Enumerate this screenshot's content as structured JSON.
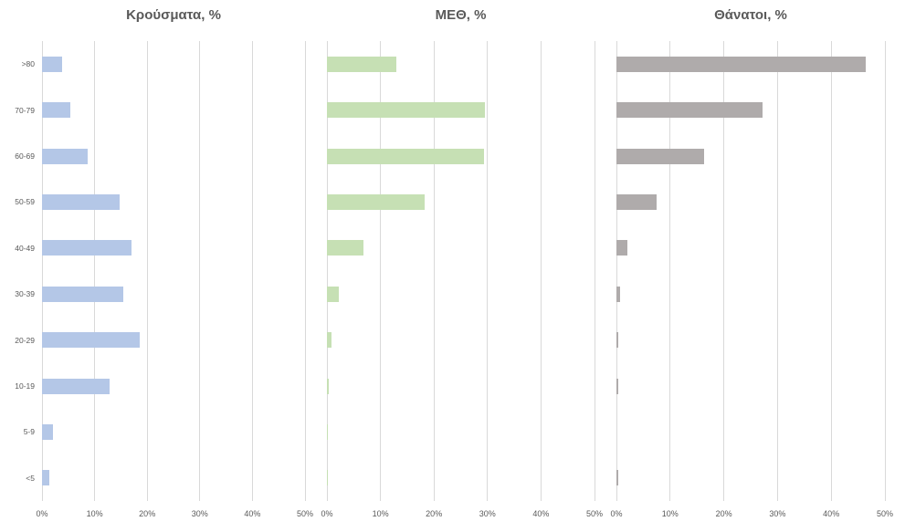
{
  "chart_data": {
    "type": "bar",
    "orientation": "horizontal",
    "title": "",
    "categories": [
      ">80",
      "70-79",
      "60-69",
      "50-59",
      "40-49",
      "30-39",
      "20-29",
      "10-19",
      "5-9",
      "<5"
    ],
    "x_axis": {
      "min": 0,
      "max": 50,
      "tick_step": 10,
      "tick_labels": [
        "0%",
        "10%",
        "20%",
        "30%",
        "40%",
        "50%"
      ],
      "grid": true
    },
    "legend": "none",
    "layout": {
      "background_color": "#ffffff",
      "gridline_color": "#d9d9d9",
      "text_color": "#595959"
    },
    "charts": [
      {
        "title": "Κρούσματα, %",
        "color": "#B4C7E7",
        "values": [
          3.8,
          5.3,
          8.7,
          14.7,
          17.1,
          15.4,
          18.5,
          12.9,
          2.0,
          1.4
        ]
      },
      {
        "title": "ΜΕΘ, %",
        "color": "#C6E0B4",
        "values": [
          13.0,
          29.5,
          29.4,
          18.2,
          6.9,
          2.3,
          0.8,
          0.4,
          0.1,
          0.1
        ]
      },
      {
        "title": "Θάνατοι, %",
        "color": "#AFABAB",
        "values": [
          46.4,
          27.2,
          16.4,
          7.5,
          2.0,
          0.7,
          0.3,
          0.3,
          0.0,
          0.3
        ]
      }
    ]
  }
}
